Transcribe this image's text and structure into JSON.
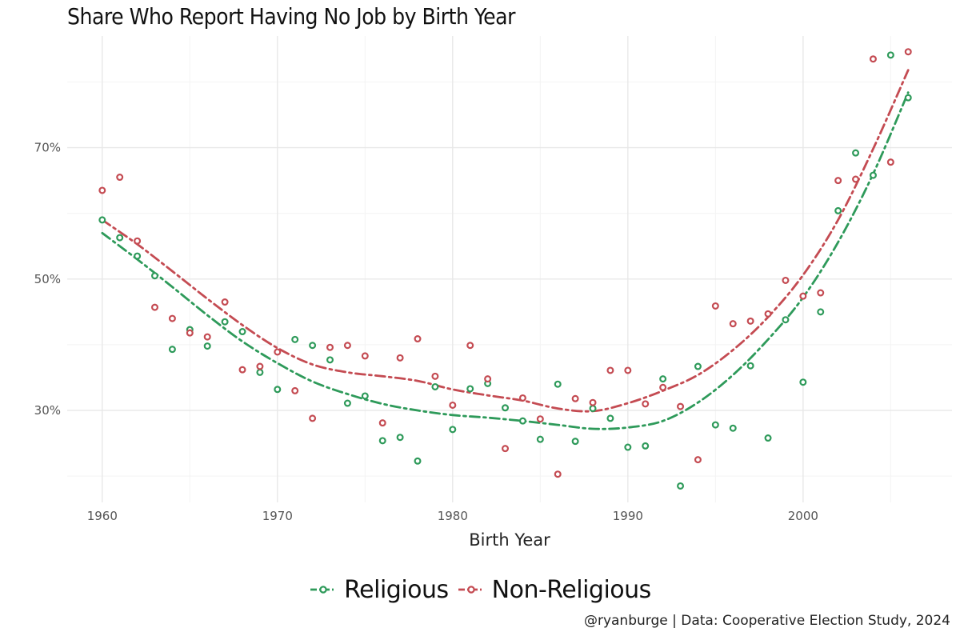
{
  "chart_data": {
    "type": "scatter",
    "title": "Share Who Report Having No Job by Birth Year",
    "xlabel": "Birth Year",
    "ylabel": "",
    "xlim": [
      1958,
      2008.5
    ],
    "ylim": [
      16,
      87
    ],
    "x_ticks": [
      1960,
      1970,
      1980,
      1990,
      2000
    ],
    "x_tick_labels": [
      "1960",
      "1970",
      "1980",
      "1990",
      "2000"
    ],
    "y_ticks": [
      30,
      50,
      70
    ],
    "y_tick_labels": [
      "30%",
      "50%",
      "70%"
    ],
    "grid": true,
    "legend_position": "bottom",
    "caption": "@ryanburge | Data: Cooperative Election Study, 2024",
    "series": [
      {
        "name": "Religious",
        "color": "#2e9a5a",
        "line_style": "dashed smooth trend",
        "points": [
          [
            1960,
            59.0
          ],
          [
            1961,
            56.3
          ],
          [
            1962,
            53.5
          ],
          [
            1963,
            50.5
          ],
          [
            1964,
            39.3
          ],
          [
            1965,
            42.3
          ],
          [
            1966,
            39.8
          ],
          [
            1967,
            43.5
          ],
          [
            1968,
            42.0
          ],
          [
            1969,
            35.8
          ],
          [
            1970,
            33.2
          ],
          [
            1971,
            40.8
          ],
          [
            1972,
            39.9
          ],
          [
            1973,
            37.7
          ],
          [
            1974,
            31.1
          ],
          [
            1975,
            32.2
          ],
          [
            1976,
            25.4
          ],
          [
            1977,
            25.9
          ],
          [
            1978,
            22.3
          ],
          [
            1979,
            33.6
          ],
          [
            1980,
            27.1
          ],
          [
            1981,
            33.3
          ],
          [
            1982,
            34.1
          ],
          [
            1983,
            30.4
          ],
          [
            1984,
            28.4
          ],
          [
            1985,
            25.6
          ],
          [
            1986,
            34.0
          ],
          [
            1987,
            25.3
          ],
          [
            1988,
            30.3
          ],
          [
            1989,
            28.8
          ],
          [
            1990,
            24.4
          ],
          [
            1991,
            24.6
          ],
          [
            1992,
            34.8
          ],
          [
            1993,
            18.5
          ],
          [
            1994,
            36.7
          ],
          [
            1995,
            27.8
          ],
          [
            1996,
            27.3
          ],
          [
            1997,
            36.8
          ],
          [
            1998,
            25.8
          ],
          [
            1999,
            43.8
          ],
          [
            2000,
            34.3
          ],
          [
            2001,
            45.0
          ],
          [
            2002,
            60.4
          ],
          [
            2003,
            69.2
          ],
          [
            2004,
            65.8
          ],
          [
            2005,
            84.1
          ],
          [
            2006,
            77.6
          ]
        ],
        "trend": [
          [
            1960,
            57.0
          ],
          [
            1962,
            53.0
          ],
          [
            1964,
            48.8
          ],
          [
            1966,
            44.5
          ],
          [
            1968,
            40.5
          ],
          [
            1970,
            37.2
          ],
          [
            1972,
            34.4
          ],
          [
            1974,
            32.5
          ],
          [
            1976,
            31.0
          ],
          [
            1978,
            30.0
          ],
          [
            1980,
            29.3
          ],
          [
            1982,
            28.9
          ],
          [
            1984,
            28.4
          ],
          [
            1986,
            27.8
          ],
          [
            1988,
            27.2
          ],
          [
            1990,
            27.4
          ],
          [
            1992,
            28.4
          ],
          [
            1994,
            31.2
          ],
          [
            1996,
            35.4
          ],
          [
            1998,
            40.8
          ],
          [
            2000,
            47.2
          ],
          [
            2002,
            55.6
          ],
          [
            2004,
            66.0
          ],
          [
            2006,
            78.4
          ]
        ]
      },
      {
        "name": "Non-Religious",
        "color": "#c44b52",
        "line_style": "dashed smooth trend",
        "points": [
          [
            1960,
            63.5
          ],
          [
            1961,
            65.5
          ],
          [
            1962,
            55.8
          ],
          [
            1963,
            45.7
          ],
          [
            1964,
            44.0
          ],
          [
            1965,
            41.8
          ],
          [
            1966,
            41.2
          ],
          [
            1967,
            46.5
          ],
          [
            1968,
            36.2
          ],
          [
            1969,
            36.7
          ],
          [
            1970,
            38.9
          ],
          [
            1971,
            33.0
          ],
          [
            1972,
            28.8
          ],
          [
            1973,
            39.6
          ],
          [
            1974,
            39.9
          ],
          [
            1975,
            38.3
          ],
          [
            1976,
            28.1
          ],
          [
            1977,
            38.0
          ],
          [
            1978,
            40.9
          ],
          [
            1979,
            35.2
          ],
          [
            1980,
            30.8
          ],
          [
            1981,
            39.9
          ],
          [
            1982,
            34.8
          ],
          [
            1983,
            24.2
          ],
          [
            1984,
            31.9
          ],
          [
            1985,
            28.7
          ],
          [
            1986,
            20.3
          ],
          [
            1987,
            31.8
          ],
          [
            1988,
            31.2
          ],
          [
            1989,
            36.1
          ],
          [
            1990,
            36.1
          ],
          [
            1991,
            31.0
          ],
          [
            1992,
            33.5
          ],
          [
            1993,
            30.6
          ],
          [
            1994,
            22.5
          ],
          [
            1995,
            45.9
          ],
          [
            1996,
            43.2
          ],
          [
            1997,
            43.6
          ],
          [
            1998,
            44.7
          ],
          [
            1999,
            49.8
          ],
          [
            2000,
            47.4
          ],
          [
            2001,
            47.9
          ],
          [
            2002,
            65.0
          ],
          [
            2003,
            65.2
          ],
          [
            2004,
            83.5
          ],
          [
            2005,
            67.8
          ],
          [
            2006,
            84.6
          ]
        ],
        "trend": [
          [
            1960,
            59.0
          ],
          [
            1962,
            55.3
          ],
          [
            1964,
            51.2
          ],
          [
            1966,
            47.0
          ],
          [
            1968,
            43.0
          ],
          [
            1970,
            39.5
          ],
          [
            1972,
            37.0
          ],
          [
            1974,
            35.8
          ],
          [
            1976,
            35.2
          ],
          [
            1978,
            34.5
          ],
          [
            1980,
            33.2
          ],
          [
            1982,
            32.3
          ],
          [
            1984,
            31.5
          ],
          [
            1986,
            30.3
          ],
          [
            1988,
            29.9
          ],
          [
            1990,
            31.1
          ],
          [
            1992,
            33.0
          ],
          [
            1994,
            35.4
          ],
          [
            1996,
            39.2
          ],
          [
            1998,
            44.2
          ],
          [
            2000,
            50.6
          ],
          [
            2002,
            59.0
          ],
          [
            2004,
            69.8
          ],
          [
            2006,
            81.8
          ]
        ]
      }
    ]
  }
}
